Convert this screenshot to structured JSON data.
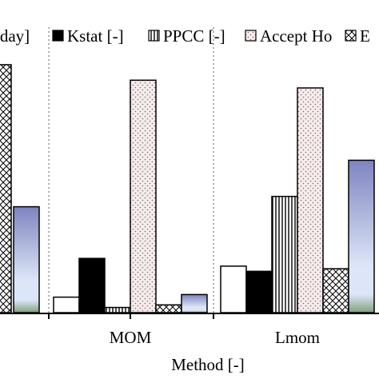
{
  "chart_data": {
    "type": "bar",
    "xlabel": "Method [-]",
    "ylabel": "",
    "categories": [
      "",
      "MOM",
      "Lmom"
    ],
    "legend": [
      {
        "label": "/day]",
        "pattern": "none"
      },
      {
        "label": "Kstat [-]",
        "pattern": "solid-black"
      },
      {
        "label": "PPCC [-]",
        "pattern": "vertical-lines"
      },
      {
        "label": "Accept Ho",
        "pattern": "dots"
      },
      {
        "label": "E",
        "pattern": "crosshatch"
      }
    ],
    "groups": [
      {
        "category": "",
        "bars": [
          {
            "series": "crosshatch",
            "value": 0.96
          },
          {
            "series": "gradient",
            "value": 0.41
          }
        ]
      },
      {
        "category": "MOM",
        "bars": [
          {
            "series": "white",
            "value": 0.06
          },
          {
            "series": "black",
            "value": 0.21
          },
          {
            "series": "vertical-lines",
            "value": 0.02
          },
          {
            "series": "dots",
            "value": 0.9
          },
          {
            "series": "crosshatch",
            "value": 0.03
          },
          {
            "series": "gradient",
            "value": 0.07
          }
        ]
      },
      {
        "category": "Lmom",
        "bars": [
          {
            "series": "white",
            "value": 0.18
          },
          {
            "series": "black",
            "value": 0.16
          },
          {
            "series": "vertical-lines",
            "value": 0.45
          },
          {
            "series": "dots",
            "value": 0.87
          },
          {
            "series": "crosshatch",
            "value": 0.17
          },
          {
            "series": "gradient",
            "value": 0.59
          }
        ]
      }
    ],
    "ylim": [
      0,
      1
    ],
    "grid": false,
    "legend_position": "top"
  }
}
